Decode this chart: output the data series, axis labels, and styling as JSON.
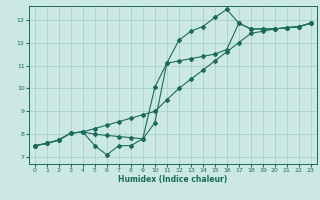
{
  "background_color": "#cce8e5",
  "grid_color": "#aacfcc",
  "line_color": "#1a6b5a",
  "xlabel": "Humidex (Indice chaleur)",
  "xlim": [
    -0.5,
    23.5
  ],
  "ylim": [
    6.7,
    13.6
  ],
  "xticks": [
    0,
    1,
    2,
    3,
    4,
    5,
    6,
    7,
    8,
    9,
    10,
    11,
    12,
    13,
    14,
    15,
    16,
    17,
    18,
    19,
    20,
    21,
    22,
    23
  ],
  "yticks": [
    7,
    8,
    9,
    10,
    11,
    12,
    13
  ],
  "line1_x": [
    0,
    1,
    2,
    3,
    4,
    5,
    6,
    7,
    8,
    9,
    10,
    11,
    12,
    13,
    14,
    15,
    16,
    17,
    18,
    19,
    20,
    21,
    22,
    23
  ],
  "line1_y": [
    7.5,
    7.6,
    7.75,
    8.05,
    8.1,
    7.5,
    7.1,
    7.5,
    7.5,
    7.8,
    8.5,
    11.1,
    12.1,
    12.5,
    12.7,
    13.1,
    13.45,
    12.85,
    12.6,
    12.6,
    12.6,
    12.65,
    12.7,
    12.85
  ],
  "line2_x": [
    0,
    1,
    2,
    3,
    4,
    5,
    6,
    7,
    8,
    9,
    10,
    11,
    12,
    13,
    14,
    15,
    16,
    17,
    18,
    19,
    20,
    21,
    22,
    23
  ],
  "line2_y": [
    7.5,
    7.6,
    7.75,
    8.05,
    8.1,
    8.0,
    7.95,
    7.9,
    7.85,
    7.8,
    10.05,
    11.1,
    11.2,
    11.3,
    11.4,
    11.5,
    11.7,
    12.85,
    12.6,
    12.6,
    12.6,
    12.65,
    12.7,
    12.85
  ],
  "line3_x": [
    0,
    1,
    2,
    3,
    4,
    5,
    6,
    7,
    8,
    9,
    10,
    11,
    12,
    13,
    14,
    15,
    16,
    17,
    18,
    19,
    20,
    21,
    22,
    23
  ],
  "line3_y": [
    7.5,
    7.6,
    7.75,
    8.05,
    8.1,
    8.25,
    8.4,
    8.55,
    8.7,
    8.85,
    9.0,
    9.5,
    10.0,
    10.4,
    10.8,
    11.2,
    11.6,
    12.0,
    12.4,
    12.5,
    12.6,
    12.65,
    12.7,
    12.85
  ]
}
